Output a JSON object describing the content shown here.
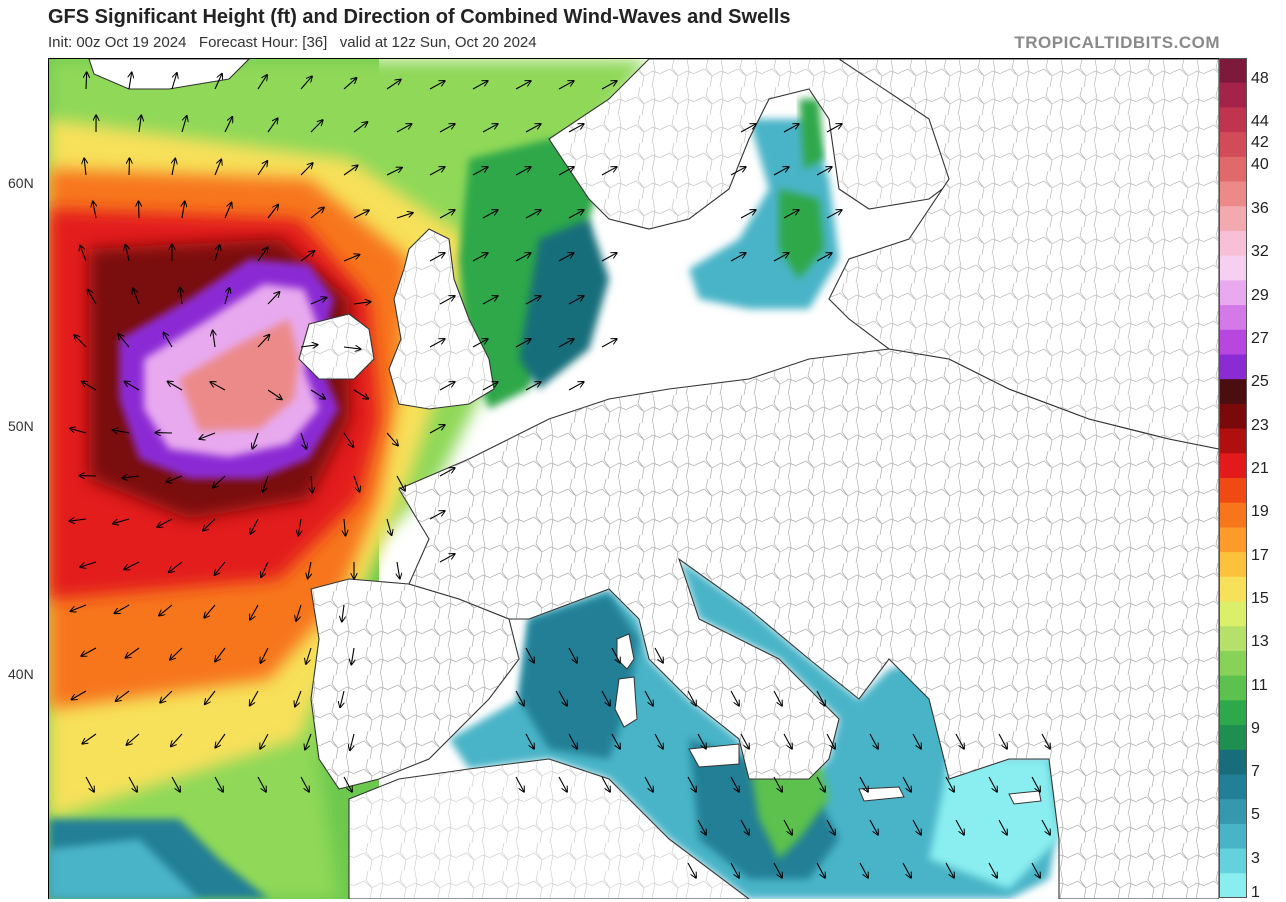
{
  "header": {
    "title": "GFS Significant Height (ft) and Direction of Combined Wind-Waves and Swells",
    "subtitle": "Init: 00z Oct 19 2024   Forecast Hour: [36]   valid at 12z Sun, Oct 20 2024",
    "brand": "TROPICALTIDBITS.COM"
  },
  "map": {
    "lat_labels": [
      "60N",
      "50N",
      "40N"
    ]
  },
  "colorbar": {
    "labels": [
      "48",
      "44",
      "42",
      "40",
      "36",
      "32",
      "29",
      "27",
      "25",
      "23",
      "21",
      "19",
      "17",
      "15",
      "13",
      "11",
      "9",
      "7",
      "5",
      "3",
      "1"
    ],
    "colors": [
      "#7d1a3b",
      "#a3234b",
      "#c0344f",
      "#d24b58",
      "#e06a6a",
      "#ec8a8a",
      "#f3a9b0",
      "#f7c0d6",
      "#f5d0f0",
      "#e8a9ef",
      "#d47ae8",
      "#b847e0",
      "#8b2bd4",
      "#4a0d10",
      "#7a0a0a",
      "#b00f0f",
      "#e31a1c",
      "#f04a14",
      "#f7761c",
      "#fc9a2a",
      "#fcc23c",
      "#f7e05a",
      "#dcef6a",
      "#b5e06a",
      "#89d25a",
      "#5cc14e",
      "#2da84a",
      "#1f8f4f",
      "#176e7a",
      "#237f96",
      "#3598ad",
      "#4ab4c7",
      "#64d2dd",
      "#8aeef0"
    ]
  }
}
